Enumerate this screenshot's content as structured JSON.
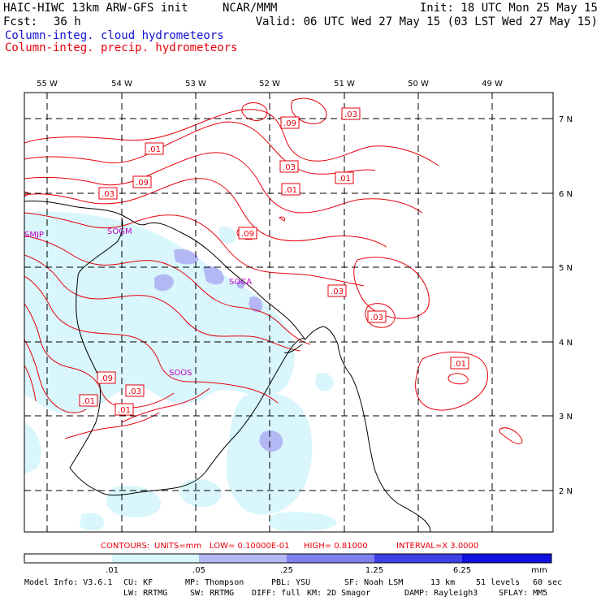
{
  "header": {
    "model": "HAIC-HIWC 13km ARW-GFS init",
    "center": "NCAR/MMM",
    "init": "Init: 18 UTC Mon 25 May 15",
    "fcst_label": "Fcst:",
    "fcst_value": "36 h",
    "valid": "Valid: 06 UTC Wed 27 May 15 (03 LST Wed 27 May 15)",
    "field1": "Column-integ. cloud hydrometeors",
    "field2": "Column-integ. precip. hydrometeors"
  },
  "colors": {
    "cloud_field": "#1010d0",
    "precip_field": "#e8000b",
    "station": "#c000c0",
    "shade_1": "#d8f6fb",
    "shade_2": "#b3b8f5",
    "shade_3": "#7f80f0",
    "shade_4": "#4040e6",
    "shade_5": "#1010e0"
  },
  "map": {
    "lon_labels": [
      "55 W",
      "54 W",
      "53 W",
      "52 W",
      "51 W",
      "50 W",
      "49 W"
    ],
    "lat_labels": [
      "7 N",
      "6 N",
      "5 N",
      "4 N",
      "3 N",
      "2 N"
    ],
    "stations": [
      {
        "id": "SMJP"
      },
      {
        "id": "SOGM"
      },
      {
        "id": "SOCA"
      },
      {
        "id": "SOOS"
      }
    ],
    "contour_labels": [
      ".03",
      ".09",
      ".01",
      ".03",
      ".09",
      ".03",
      ".01",
      ".01",
      ".09",
      ".03",
      ".03",
      ".01",
      ".09",
      ".03",
      ".01",
      ".01"
    ]
  },
  "contour_info": {
    "contours": "CONTOURS:",
    "units": "UNITS=mm",
    "low": "LOW= 0.10000E-01",
    "high": "HIGH= 0.81000",
    "interval": "INTERVAL=X  3.0000"
  },
  "colorbar": {
    "ticks": [
      ".01",
      ".05",
      ".25",
      "1.25",
      "6.25"
    ],
    "unit": "mm"
  },
  "model_info": {
    "line1": {
      "version": "Model Info: V3.6.1",
      "cu": "CU: KF",
      "mp": "MP: Thompson",
      "pbl": "PBL: YSU",
      "sf": "SF: Noah LSM",
      "res": "13 km",
      "levels": "51 levels",
      "dt": "60 sec"
    },
    "line2": {
      "lw": "LW: RRTMG",
      "sw": "SW: RRTMG",
      "diff": "DIFF: full",
      "km": "KM: 2D Smagor",
      "damp": "DAMP: Rayleigh3",
      "sflay": "SFLAY: MM5"
    }
  }
}
